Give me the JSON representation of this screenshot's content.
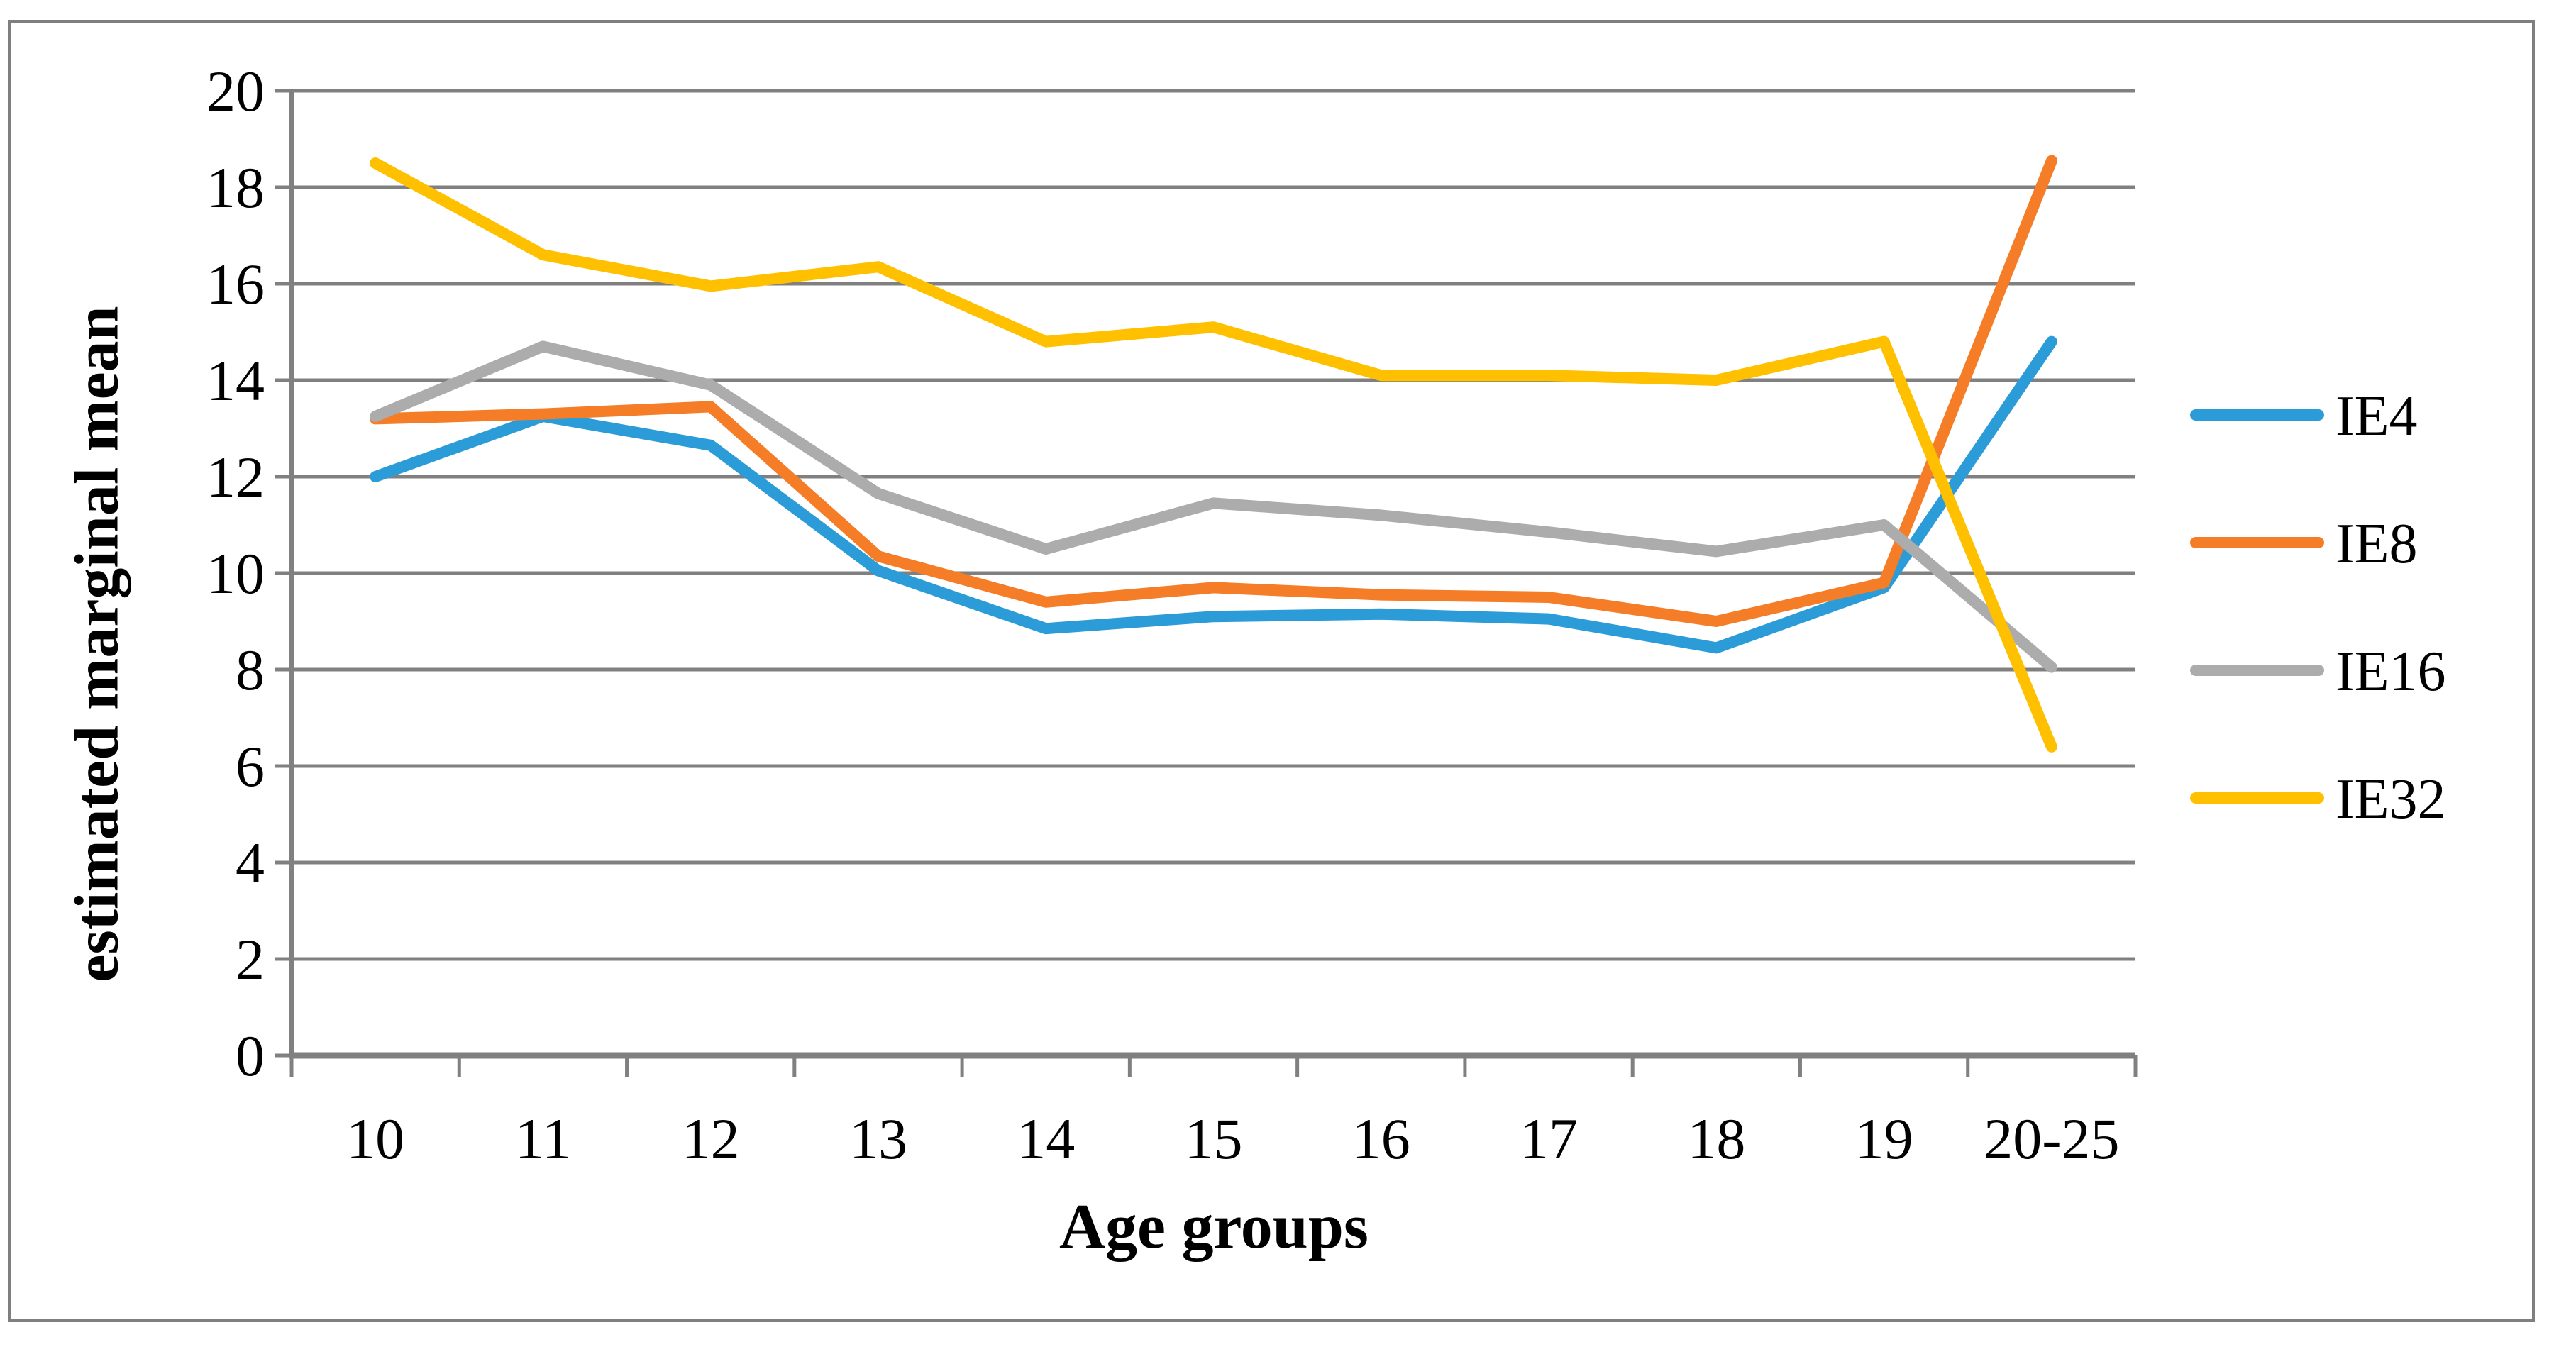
{
  "frame": {
    "border_color": "#7F7F7F"
  },
  "chart_data": {
    "type": "line",
    "title": "",
    "xlabel": "Age groups",
    "ylabel": "estimated marginal mean",
    "categories": [
      "10",
      "11",
      "12",
      "13",
      "14",
      "15",
      "16",
      "17",
      "18",
      "19",
      "20-25"
    ],
    "series": [
      {
        "name": "IE4",
        "color": "#2B9CD8",
        "values": [
          12.0,
          13.25,
          12.65,
          10.05,
          8.85,
          9.1,
          9.15,
          9.05,
          8.45,
          9.7,
          14.8
        ]
      },
      {
        "name": "IE8",
        "color": "#F57D28",
        "values": [
          13.2,
          13.3,
          13.45,
          10.35,
          9.4,
          9.7,
          9.55,
          9.5,
          9.0,
          9.8,
          18.55
        ]
      },
      {
        "name": "IE16",
        "color": "#ACACAC",
        "values": [
          13.25,
          14.7,
          13.9,
          11.65,
          10.5,
          11.45,
          11.2,
          10.85,
          10.45,
          11.0,
          8.05
        ]
      },
      {
        "name": "IE32",
        "color": "#FFC000",
        "values": [
          18.5,
          16.6,
          15.95,
          16.35,
          14.8,
          15.1,
          14.1,
          14.1,
          14.0,
          14.8,
          6.4
        ]
      }
    ],
    "ylim": [
      0,
      20
    ],
    "ytick_step": 2,
    "yticks": [
      "0",
      "2",
      "4",
      "6",
      "8",
      "10",
      "12",
      "14",
      "16",
      "18",
      "20"
    ],
    "grid": "horizontal gridlines on",
    "legend_position": "right",
    "axis_color": "#808080",
    "line_width": 16
  }
}
